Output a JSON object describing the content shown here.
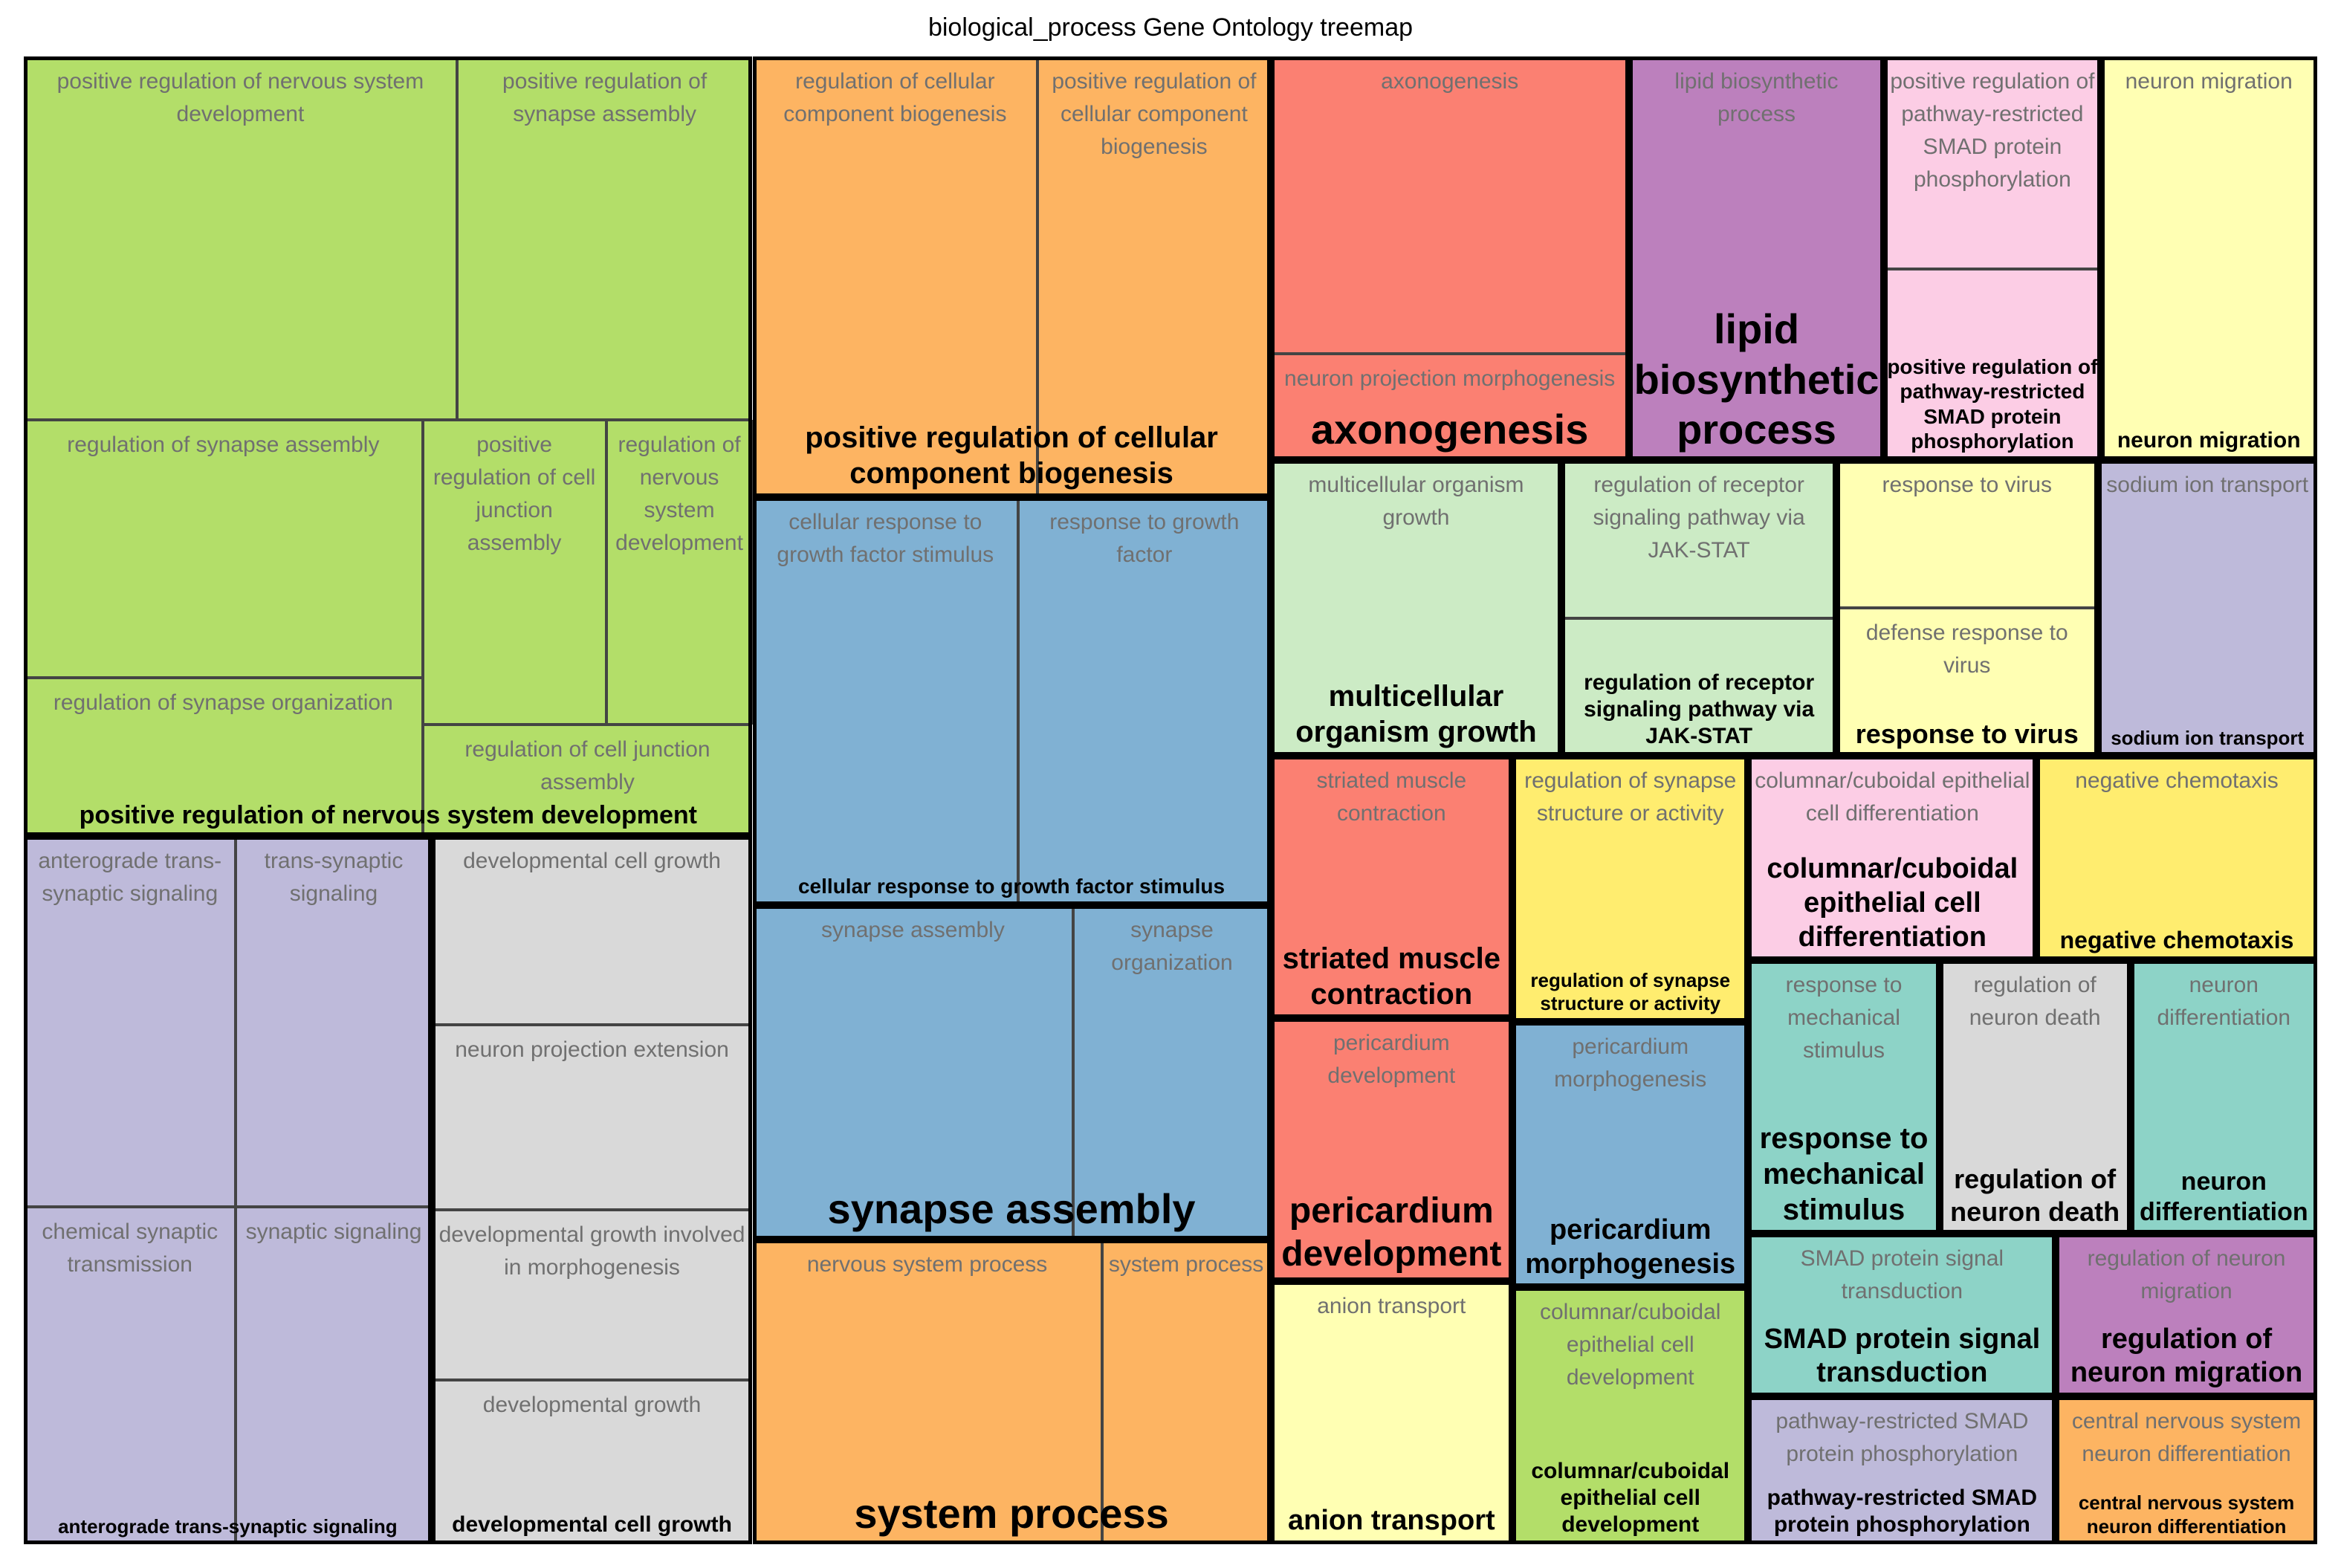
{
  "chart_data": {
    "type": "treemap",
    "title": "biological_process Gene Ontology treemap",
    "groups": [
      {
        "label": "positive regulation of nervous system development",
        "color": "#b3de69",
        "tiles": [
          "positive regulation of nervous system development",
          "positive regulation of synapse assembly",
          "regulation of synapse assembly",
          "positive regulation of cell junction assembly",
          "regulation of nervous system development",
          "regulation of synapse organization",
          "regulation of cell junction assembly"
        ]
      },
      {
        "label": "anterograde trans-synaptic signaling",
        "color": "#bebada",
        "tiles": [
          "anterograde trans-synaptic signaling",
          "trans-synaptic signaling",
          "chemical synaptic transmission",
          "synaptic signaling"
        ]
      },
      {
        "label": "developmental cell growth",
        "color": "#d9d9d9",
        "tiles": [
          "developmental cell growth",
          "neuron projection extension",
          "developmental growth involved in morphogenesis",
          "developmental growth"
        ]
      },
      {
        "label": "positive regulation of cellular component biogenesis",
        "color": "#fdb462",
        "tiles": [
          "regulation of cellular component biogenesis",
          "positive regulation of cellular component biogenesis"
        ]
      },
      {
        "label": "cellular response to growth factor stimulus",
        "color": "#80b1d3",
        "tiles": [
          "cellular response to growth factor stimulus",
          "response to growth factor"
        ]
      },
      {
        "label": "synapse assembly",
        "color": "#80b1d3",
        "tiles": [
          "synapse assembly",
          "synapse organization"
        ]
      },
      {
        "label": "system process",
        "color": "#fdb462",
        "tiles": [
          "nervous system process",
          "system process"
        ]
      },
      {
        "label": "axonogenesis",
        "color": "#fb8072",
        "tiles": [
          "axonogenesis",
          "neuron projection morphogenesis"
        ]
      },
      {
        "label": "lipid biosynthetic process",
        "color": "#bc80bd",
        "tiles": [
          "lipid biosynthetic process"
        ]
      },
      {
        "label": "positive regulation of pathway-restricted SMAD protein phosphorylation",
        "color": "#fccde5",
        "tiles": [
          "positive regulation of pathway-restricted SMAD protein phosphorylation"
        ]
      },
      {
        "label": "neuron migration",
        "color": "#ffffb3",
        "tiles": [
          "neuron migration"
        ]
      },
      {
        "label": "multicellular organism growth",
        "color": "#ccebc5",
        "tiles": [
          "multicellular organism growth"
        ]
      },
      {
        "label": "regulation of receptor signaling pathway via JAK-STAT",
        "color": "#ccebc5",
        "tiles": [
          "regulation of receptor signaling pathway via JAK-STAT"
        ]
      },
      {
        "label": "response to virus",
        "color": "#ffffb3",
        "tiles": [
          "response to virus",
          "defense response to virus"
        ]
      },
      {
        "label": "sodium ion transport",
        "color": "#bebada",
        "tiles": [
          "sodium ion transport"
        ]
      },
      {
        "label": "striated muscle contraction",
        "color": "#fb8072",
        "tiles": [
          "striated muscle contraction"
        ]
      },
      {
        "label": "regulation of synapse structure or activity",
        "color": "#ffed6f",
        "tiles": [
          "regulation of synapse structure or activity"
        ]
      },
      {
        "label": "columnar/cuboidal epithelial cell differentiation",
        "color": "#fccde5",
        "tiles": [
          "columnar/cuboidal epithelial cell differentiation"
        ]
      },
      {
        "label": "negative chemotaxis",
        "color": "#ffed6f",
        "tiles": [
          "negative chemotaxis"
        ]
      },
      {
        "label": "pericardium development",
        "color": "#fb8072",
        "tiles": [
          "pericardium development"
        ]
      },
      {
        "label": "pericardium morphogenesis",
        "color": "#80b1d3",
        "tiles": [
          "pericardium morphogenesis"
        ]
      },
      {
        "label": "anion transport",
        "color": "#ffffb3",
        "tiles": [
          "anion transport"
        ]
      },
      {
        "label": "columnar/cuboidal epithelial cell development",
        "color": "#b3de69",
        "tiles": [
          "columnar/cuboidal epithelial cell development"
        ]
      },
      {
        "label": "response to mechanical stimulus",
        "color": "#8dd3c7",
        "tiles": [
          "response to mechanical stimulus"
        ]
      },
      {
        "label": "regulation of neuron death",
        "color": "#d9d9d9",
        "tiles": [
          "regulation of neuron death"
        ]
      },
      {
        "label": "neuron differentiation",
        "color": "#8dd3c7",
        "tiles": [
          "neuron differentiation"
        ]
      },
      {
        "label": "SMAD protein signal transduction",
        "color": "#8dd3c7",
        "tiles": [
          "SMAD protein signal transduction"
        ]
      },
      {
        "label": "regulation of neuron migration",
        "color": "#bc80bd",
        "tiles": [
          "regulation of neuron migration"
        ]
      },
      {
        "label": "pathway-restricted SMAD protein phosphorylation",
        "color": "#bebada",
        "tiles": [
          "pathway-restricted SMAD protein phosphorylation"
        ]
      },
      {
        "label": "central nervous system neuron differentiation",
        "color": "#fdb462",
        "tiles": [
          "central nervous system neuron differentiation"
        ]
      }
    ]
  }
}
